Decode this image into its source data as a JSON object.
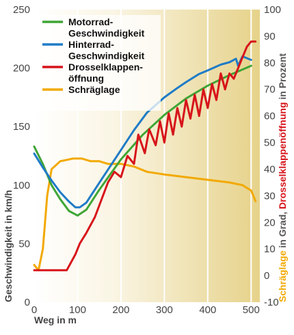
{
  "chart_data": {
    "type": "line",
    "xlabel": "Weg in m",
    "ylabel_left": "Geschwindigkeit in km/h",
    "ylabel_right_parts": [
      {
        "text": "Schräglage",
        "color": "#f2a900"
      },
      {
        "text": " in Grad, ",
        "color": "#555555"
      },
      {
        "text": "Drosselklappenöffnung",
        "color": "#d7141a"
      },
      {
        "text": " in Prozent",
        "color": "#555555"
      }
    ],
    "xlim": [
      0,
      520
    ],
    "ylim_left": [
      0,
      250
    ],
    "ylim_right": [
      -10,
      100
    ],
    "x_ticks": [
      0,
      100,
      200,
      300,
      400,
      500
    ],
    "y_ticks_left": [
      0,
      50,
      100,
      150,
      200,
      250
    ],
    "y_ticks_right": [
      -10,
      0,
      10,
      20,
      30,
      40,
      50,
      60,
      70,
      80,
      90,
      100
    ],
    "grid": "vertical",
    "background": "gradient white-to-tan",
    "legend_position": "top-left",
    "series": [
      {
        "name": "Motorrad-\nGeschwindigkeit",
        "color": "#3fa535",
        "axis": "left",
        "x": [
          0,
          20,
          40,
          60,
          80,
          100,
          120,
          150,
          200,
          250,
          300,
          350,
          400,
          450,
          500
        ],
        "y": [
          133,
          118,
          100,
          88,
          78,
          74,
          79,
          96,
          122,
          143,
          160,
          174,
          185,
          194,
          202
        ]
      },
      {
        "name": "Hinterrad-\nGeschwindigkeit",
        "color": "#1f7bc7",
        "axis": "left",
        "x": [
          0,
          20,
          40,
          60,
          80,
          95,
          105,
          120,
          150,
          200,
          230,
          260,
          300,
          330,
          350,
          380,
          400,
          430,
          450,
          465,
          470,
          480,
          500
        ],
        "y": [
          127,
          115,
          104,
          94,
          86,
          81,
          81,
          85,
          102,
          130,
          147,
          162,
          175,
          183,
          188,
          195,
          198,
          203,
          205,
          208,
          202,
          210,
          207
        ]
      },
      {
        "name": "Drosselklappen-\nöffnung",
        "color": "#d7141a",
        "axis": "right",
        "x": [
          0,
          40,
          75,
          95,
          105,
          120,
          140,
          170,
          185,
          200,
          215,
          230,
          240,
          255,
          265,
          280,
          290,
          300,
          310,
          320,
          330,
          340,
          350,
          360,
          370,
          380,
          390,
          400,
          410,
          420,
          430,
          440,
          450,
          460,
          470,
          480,
          490,
          500,
          510
        ],
        "y": [
          2,
          2,
          2,
          8,
          12,
          16,
          22,
          35,
          39,
          37,
          45,
          42,
          53,
          46,
          55,
          49,
          58,
          50,
          61,
          53,
          63,
          56,
          66,
          59,
          68,
          60,
          70,
          63,
          72,
          66,
          76,
          70,
          76,
          74,
          78,
          82,
          86,
          88,
          88
        ]
      },
      {
        "name": "Schräglage",
        "color": "#f2a900",
        "axis": "right",
        "x": [
          0,
          10,
          20,
          30,
          40,
          60,
          90,
          110,
          130,
          150,
          170,
          200,
          230,
          260,
          300,
          350,
          400,
          450,
          480,
          500,
          510
        ],
        "y": [
          4,
          2,
          10,
          30,
          40,
          43,
          44,
          44,
          43,
          43,
          42,
          42,
          41,
          39,
          38,
          37,
          36,
          35,
          34,
          32,
          28
        ]
      }
    ]
  }
}
